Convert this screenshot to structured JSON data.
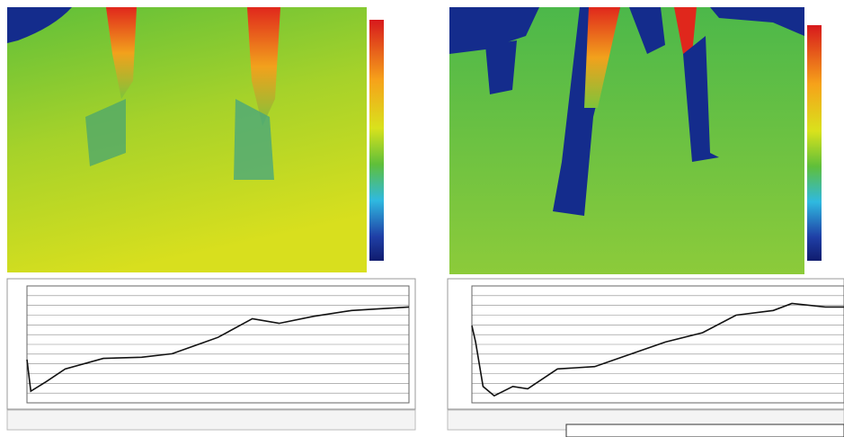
{
  "panels": [
    {
      "profile": {
        "x": [
          0,
          1,
          5,
          10,
          20,
          30,
          38,
          50,
          59,
          66,
          75,
          85,
          100
        ],
        "values": [
          37,
          10,
          18,
          29,
          38,
          39,
          42,
          56,
          72,
          68,
          74,
          79,
          82
        ],
        "xlim": [
          0,
          100
        ],
        "ylim": [
          0,
          100
        ]
      }
    },
    {
      "profile": {
        "x": [
          0,
          1,
          3,
          6,
          11,
          15,
          23,
          33,
          42,
          52,
          62,
          71,
          81,
          86,
          95,
          100
        ],
        "values": [
          66,
          52,
          14,
          6,
          14,
          12,
          29,
          31,
          41,
          52,
          60,
          75,
          79,
          85,
          82,
          82
        ],
        "xlim": [
          0,
          100
        ],
        "ylim": [
          0,
          100
        ]
      }
    }
  ]
}
